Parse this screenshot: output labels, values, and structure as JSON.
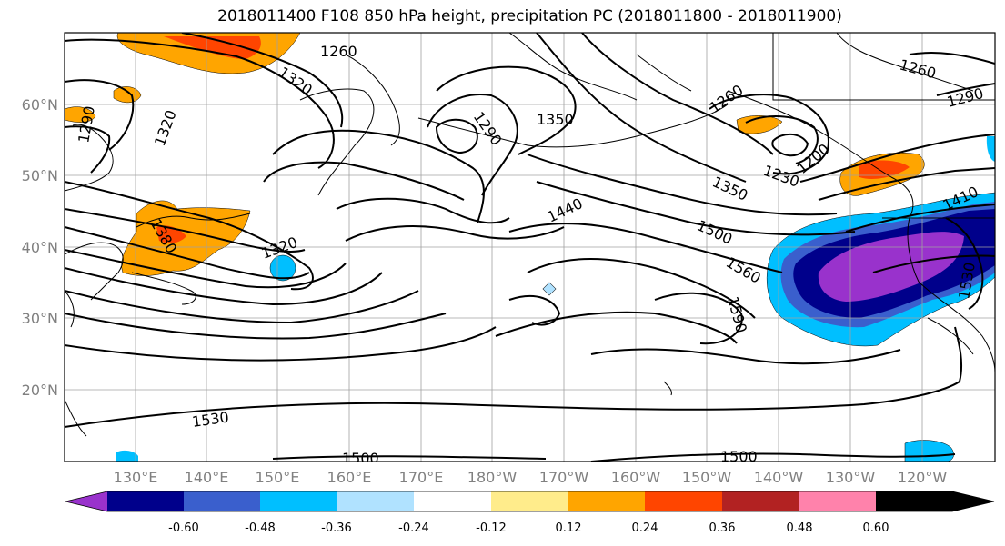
{
  "title": "2018011400 F108 850 hPa height, precipitation PC (2018011800 - 2018011900)",
  "lat_labels": [
    "60°N",
    "50°N",
    "40°N",
    "30°N",
    "20°N"
  ],
  "lon_labels": [
    "130°E",
    "140°E",
    "150°E",
    "160°E",
    "170°E",
    "180°W",
    "170°W",
    "160°W",
    "150°W",
    "140°W",
    "130°W",
    "120°W"
  ],
  "contour_labels": [
    "1260",
    "1320",
    "1290",
    "1320",
    "1290",
    "1350",
    "1260",
    "1230",
    "1200",
    "1290",
    "1260",
    "1410",
    "1440",
    "1350",
    "1500",
    "1560",
    "1590",
    "1530",
    "1320",
    "1380",
    "1530",
    "1500",
    "1500"
  ],
  "colorbar": {
    "colors": [
      "#9932cc",
      "#00008b",
      "#3a5fcd",
      "#00bfff",
      "#b0e2ff",
      "#ffffff",
      "#ffec8b",
      "#ffa500",
      "#ff4500",
      "#b22222",
      "#ff82ab"
    ],
    "tick_labels": [
      "-0.60",
      "-0.48",
      "-0.36",
      "-0.24",
      "-0.12",
      "0.12",
      "0.24",
      "0.36",
      "0.48",
      "0.60"
    ]
  }
}
